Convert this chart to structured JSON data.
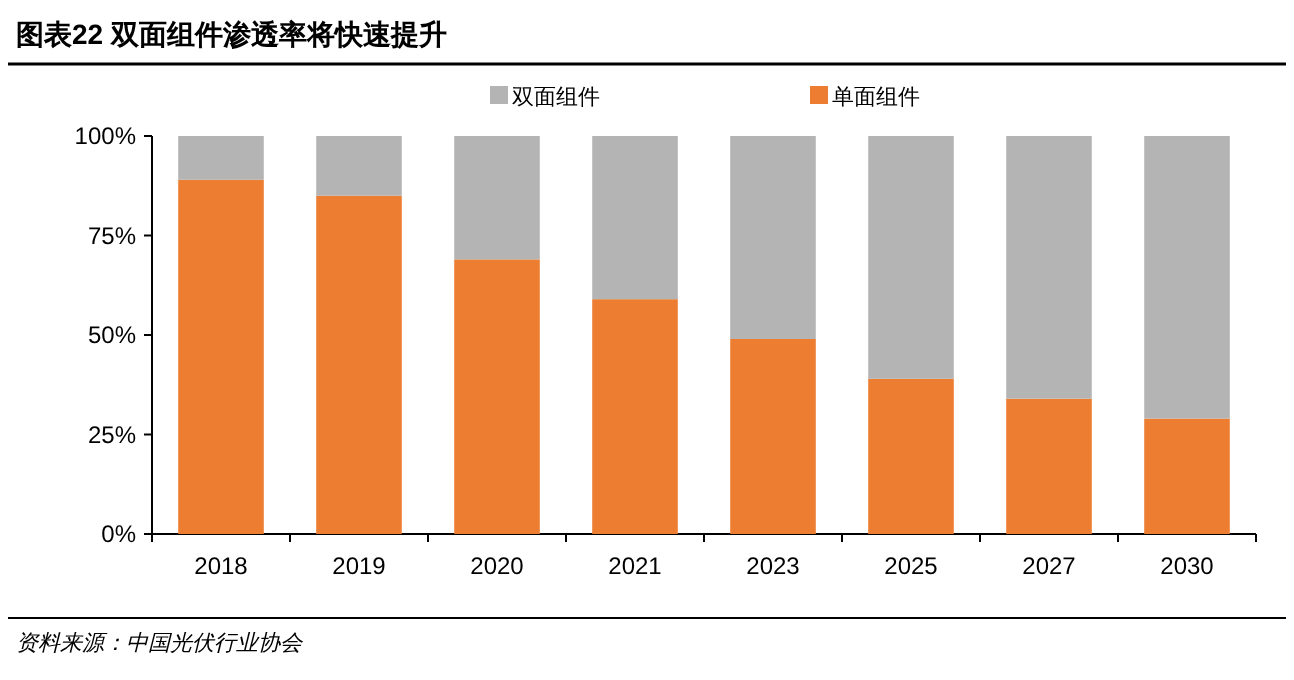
{
  "chart_data": {
    "type": "bar",
    "stacked": true,
    "title": "图表22  双面组件渗透率将快速提升",
    "categories": [
      "2018",
      "2019",
      "2020",
      "2021",
      "2023",
      "2025",
      "2027",
      "2030"
    ],
    "series": [
      {
        "name": "单面组件",
        "color": "#ed7d31",
        "values": [
          89,
          85,
          69,
          59,
          49,
          39,
          34,
          29
        ]
      },
      {
        "name": "双面组件",
        "color": "#b4b4b4",
        "values": [
          11,
          15,
          31,
          41,
          51,
          61,
          66,
          71
        ]
      }
    ],
    "ylim": [
      0,
      100
    ],
    "yticks": [
      {
        "value": 0,
        "label": "0%"
      },
      {
        "value": 25,
        "label": "25%"
      },
      {
        "value": 50,
        "label": "50%"
      },
      {
        "value": 75,
        "label": "75%"
      },
      {
        "value": 100,
        "label": "100%"
      }
    ],
    "legend": "top",
    "grid": false,
    "annotations": [
      "资料来源：中国光伏行业协会"
    ]
  }
}
